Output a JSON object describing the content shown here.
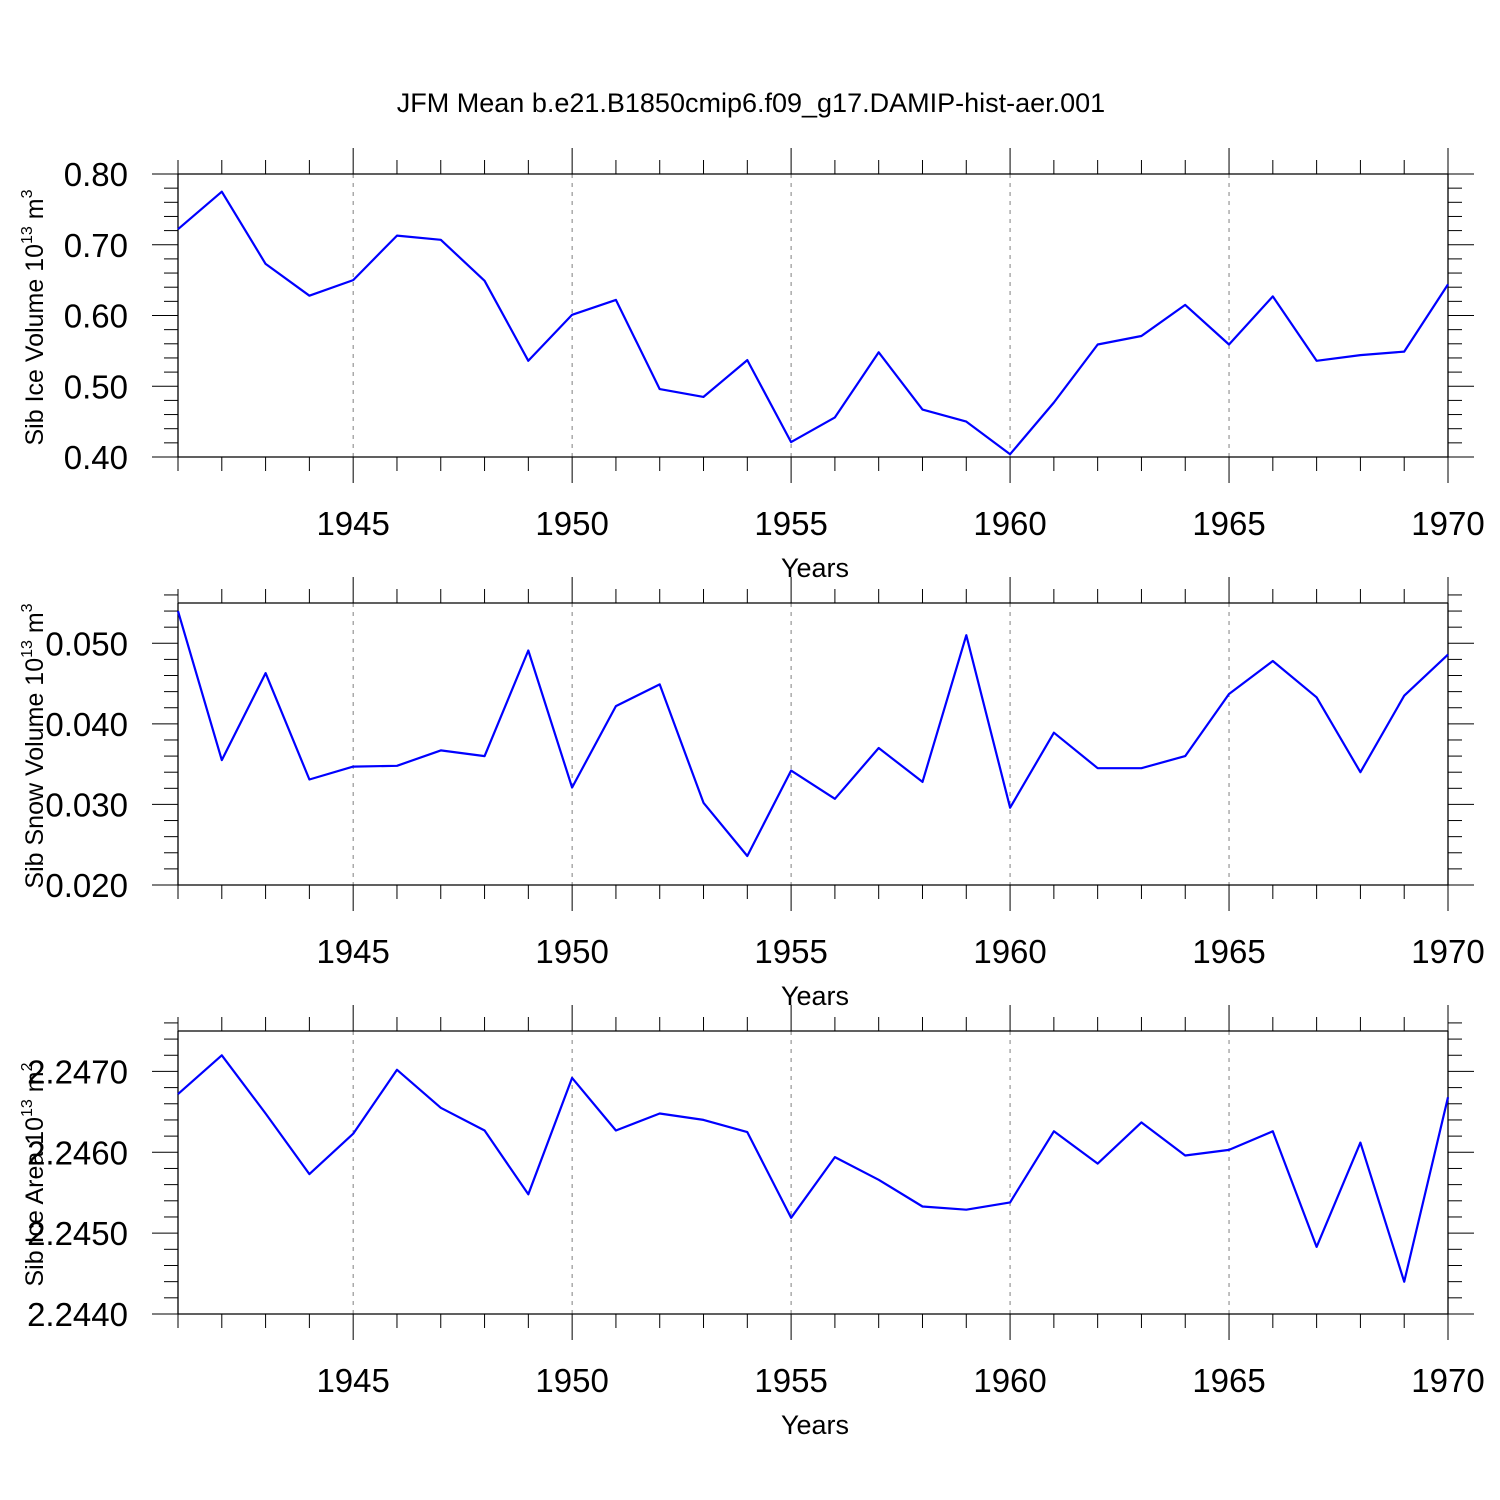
{
  "figure": {
    "title": "JFM Mean b.e21.B1850cmip6.f09_g17.DAMIP-hist-aer.001",
    "line_color": "#0000ff",
    "axis_color": "#000000",
    "grid_color": "#808080"
  },
  "chart_data": [
    {
      "type": "line",
      "xlabel": "Years",
      "ylabel": "Sib Ice Volume 10",
      "ylabel_sup": "13",
      "ylabel_unit": " m",
      "ylabel_unit_sup": "3",
      "xlim": [
        1941,
        1970
      ],
      "ylim": [
        0.4,
        0.8
      ],
      "x_ticks": [
        1945,
        1950,
        1955,
        1960,
        1965,
        1970
      ],
      "x_tick_labels": [
        "1945",
        "1950",
        "1955",
        "1960",
        "1965",
        "1970"
      ],
      "y_ticks": [
        0.4,
        0.5,
        0.6,
        0.7,
        0.8
      ],
      "y_tick_labels": [
        "0.40",
        "0.50",
        "0.60",
        "0.70",
        "0.80"
      ],
      "grid": "vertical dashed at major x ticks",
      "x": [
        1941,
        1942,
        1943,
        1944,
        1945,
        1946,
        1947,
        1948,
        1949,
        1950,
        1951,
        1952,
        1953,
        1954,
        1955,
        1956,
        1957,
        1958,
        1959,
        1960,
        1961,
        1962,
        1963,
        1964,
        1965,
        1966,
        1967,
        1968,
        1969,
        1970
      ],
      "series": [
        {
          "values": [
            0.722,
            0.775,
            0.673,
            0.628,
            0.65,
            0.713,
            0.707,
            0.649,
            0.536,
            0.601,
            0.622,
            0.496,
            0.485,
            0.537,
            0.421,
            0.456,
            0.548,
            0.467,
            0.45,
            0.404,
            0.477,
            0.559,
            0.571,
            0.615,
            0.559,
            0.627,
            0.536,
            0.544,
            0.549,
            0.644
          ]
        }
      ]
    },
    {
      "type": "line",
      "xlabel": "Years",
      "ylabel": "Sib Snow Volume 10",
      "ylabel_sup": "13",
      "ylabel_unit": " m",
      "ylabel_unit_sup": "3",
      "xlim": [
        1941,
        1970
      ],
      "ylim": [
        0.02,
        0.055
      ],
      "x_ticks": [
        1945,
        1950,
        1955,
        1960,
        1965,
        1970
      ],
      "x_tick_labels": [
        "1945",
        "1950",
        "1955",
        "1960",
        "1965",
        "1970"
      ],
      "y_ticks": [
        0.02,
        0.03,
        0.04,
        0.05
      ],
      "y_tick_labels": [
        "0.020",
        "0.030",
        "0.040",
        "0.050"
      ],
      "grid": "vertical dashed at major x ticks",
      "x": [
        1941,
        1942,
        1943,
        1944,
        1945,
        1946,
        1947,
        1948,
        1949,
        1950,
        1951,
        1952,
        1953,
        1954,
        1955,
        1956,
        1957,
        1958,
        1959,
        1960,
        1961,
        1962,
        1963,
        1964,
        1965,
        1966,
        1967,
        1968,
        1969,
        1970
      ],
      "series": [
        {
          "values": [
            0.054,
            0.0355,
            0.0463,
            0.0331,
            0.0347,
            0.0348,
            0.0367,
            0.036,
            0.0491,
            0.0321,
            0.0422,
            0.0449,
            0.0302,
            0.0236,
            0.0342,
            0.0307,
            0.037,
            0.0328,
            0.051,
            0.0296,
            0.0389,
            0.0345,
            0.0345,
            0.036,
            0.0437,
            0.0478,
            0.0433,
            0.034,
            0.0435,
            0.0486
          ]
        }
      ]
    },
    {
      "type": "line",
      "xlabel": "Years",
      "ylabel": "Sib Ice Area 10",
      "ylabel_sup": "13",
      "ylabel_unit": " m",
      "ylabel_unit_sup": "2",
      "xlim": [
        1941,
        1970
      ],
      "ylim": [
        2.244,
        2.2475
      ],
      "x_ticks": [
        1945,
        1950,
        1955,
        1960,
        1965,
        1970
      ],
      "x_tick_labels": [
        "1945",
        "1950",
        "1955",
        "1960",
        "1965",
        "1970"
      ],
      "y_ticks": [
        2.244,
        2.245,
        2.246,
        2.247
      ],
      "y_tick_labels": [
        "2.2440",
        "2.2450",
        "2.2460",
        "2.2470"
      ],
      "grid": "vertical dashed at major x ticks",
      "x": [
        1941,
        1942,
        1943,
        1944,
        1945,
        1946,
        1947,
        1948,
        1949,
        1950,
        1951,
        1952,
        1953,
        1954,
        1955,
        1956,
        1957,
        1958,
        1959,
        1960,
        1961,
        1962,
        1963,
        1964,
        1965,
        1966,
        1967,
        1968,
        1969,
        1970
      ],
      "series": [
        {
          "values": [
            2.24672,
            2.2472,
            2.24648,
            2.24573,
            2.24623,
            2.24702,
            2.24655,
            2.24627,
            2.24548,
            2.24692,
            2.24627,
            2.24648,
            2.2464,
            2.24625,
            2.24519,
            2.24594,
            2.24566,
            2.24533,
            2.24529,
            2.24538,
            2.24626,
            2.24586,
            2.24637,
            2.24596,
            2.24603,
            2.24626,
            2.24483,
            2.24612,
            2.2444,
            2.24668
          ]
        }
      ]
    }
  ]
}
